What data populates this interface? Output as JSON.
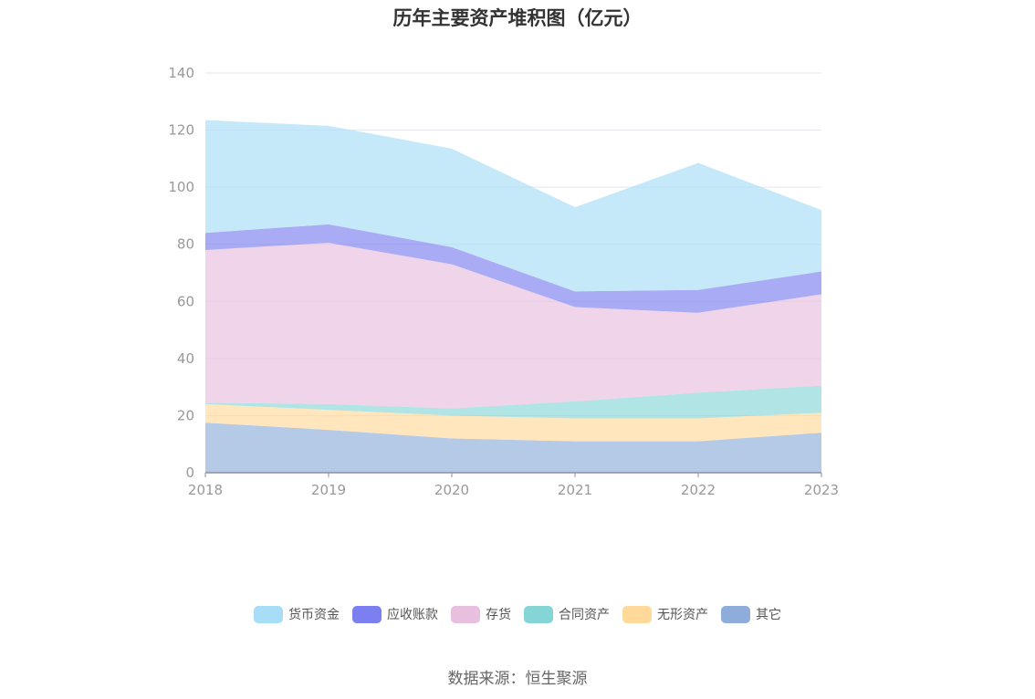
{
  "chart_data": {
    "type": "area",
    "stacked": true,
    "title": "历年主要资产堆积图（亿元）",
    "x": [
      "2018",
      "2019",
      "2020",
      "2021",
      "2022",
      "2023"
    ],
    "ylim": [
      0,
      140
    ],
    "yticks": [
      0,
      20,
      40,
      60,
      80,
      100,
      120,
      140
    ],
    "grid": true,
    "legend_position": "bottom",
    "series": [
      {
        "name": "其它",
        "color": "#8eadda",
        "values": [
          17.5,
          15.0,
          12.0,
          11.0,
          11.0,
          14.0
        ]
      },
      {
        "name": "无形资产",
        "color": "#ffd999",
        "values": [
          6.5,
          7.0,
          8.0,
          8.0,
          8.0,
          7.0
        ]
      },
      {
        "name": "合同资产",
        "color": "#85d5d7",
        "values": [
          0.5,
          2.0,
          2.5,
          6.0,
          9.0,
          9.5
        ]
      },
      {
        "name": "存货",
        "color": "#e8bfde",
        "values": [
          53.5,
          56.5,
          50.5,
          33.0,
          28.0,
          32.0
        ]
      },
      {
        "name": "应收账款",
        "color": "#7b7ff0",
        "values": [
          6.0,
          6.5,
          6.0,
          5.5,
          8.0,
          8.0
        ]
      },
      {
        "name": "货币资金",
        "color": "#a8ddf8",
        "values": [
          39.5,
          34.5,
          34.5,
          29.5,
          44.5,
          21.5
        ]
      }
    ]
  },
  "legend_order": [
    5,
    4,
    3,
    2,
    1,
    0
  ],
  "source": "数据来源：恒生聚源"
}
